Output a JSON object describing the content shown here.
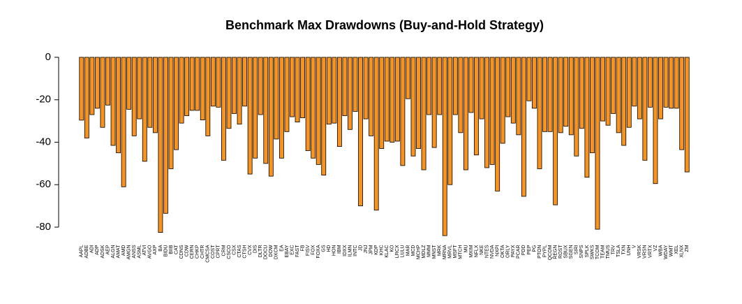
{
  "chart_data": {
    "type": "bar",
    "title": "Benchmark Max Drawdowns (Buy-and-Hold Strategy)",
    "color": "#f7931e",
    "categories": [
      "AAPL",
      "ADBE",
      "ADI",
      "ADP",
      "ADSK",
      "AEP",
      "ALGN",
      "AMAT",
      "AMD",
      "AMGN",
      "ANSS",
      "ASML",
      "ATVI",
      "AVGO",
      "AXP",
      "BA",
      "BIDU",
      "BIIB",
      "CAT",
      "CDNS",
      "CDW",
      "CERN",
      "CHKP",
      "CHTR",
      "CMCSA",
      "COST",
      "CPRT",
      "CRM",
      "CSCO",
      "CSX",
      "CTAS",
      "CTSH",
      "CVX",
      "DIS",
      "DLTR",
      "DOCU",
      "DOW",
      "DXCM",
      "EA",
      "EBAY",
      "EXC",
      "FAST",
      "FB",
      "FISV",
      "FOX",
      "FOXA",
      "GS",
      "HD",
      "HON",
      "IBM",
      "IDXX",
      "ILMN",
      "INTC",
      "JD",
      "JNJ",
      "JPM",
      "KDP",
      "KHC",
      "KLAC",
      "KO",
      "LRCX",
      "LULU",
      "MAR",
      "MCD",
      "MCHP",
      "MDLZ",
      "MMM",
      "MNST",
      "MRK",
      "MRNA",
      "MRVL",
      "MSFT",
      "MTCH",
      "MU",
      "MXIM",
      "NFLX",
      "NKE",
      "NTES",
      "NVDA",
      "NXPI",
      "OKTA",
      "ORLY",
      "PAYX",
      "PCAR",
      "PDD",
      "PEP",
      "PG",
      "PTON",
      "PYPL",
      "QCOM",
      "REGN",
      "ROST",
      "SBUX",
      "SGEN",
      "SIRI",
      "SNPS",
      "SPLK",
      "SWKS",
      "TCOM",
      "TEAM",
      "TMUS",
      "TRV",
      "TSLA",
      "TXN",
      "UNH",
      "V",
      "VRSK",
      "VRSN",
      "VRTX",
      "VZ",
      "WBA",
      "WDAY",
      "WMT",
      "XEL",
      "XLNX",
      "ZM"
    ],
    "values": [
      -29.6,
      -38,
      -27,
      -24,
      -33,
      -22.5,
      -41.5,
      -45,
      -61,
      -24.5,
      -37,
      -29,
      -49,
      -33,
      -35.5,
      -82.5,
      -73.5,
      -52.5,
      -43.5,
      -31,
      -27.5,
      -25,
      -25,
      -29.5,
      -37,
      -23,
      -23.5,
      -48.5,
      -33.5,
      -26.5,
      -31.5,
      -23,
      -55,
      -47.5,
      -27,
      -50,
      -56,
      -38.5,
      -47.5,
      -35,
      -28,
      -30.5,
      -28.5,
      -44,
      -47.5,
      -50.5,
      -55.5,
      -31.5,
      -31,
      -42,
      -27.5,
      -34,
      -25.5,
      -70,
      -29,
      -37,
      -72,
      -43,
      -39.5,
      -40,
      -39.5,
      -51,
      -19.5,
      -46.5,
      -43,
      -53,
      -27,
      -42.5,
      -27,
      -84,
      -60,
      -27,
      -35.5,
      -53,
      -26,
      -46,
      -29,
      -52,
      -50.5,
      -63,
      -40.5,
      -28,
      -31,
      -36.5,
      -65.5,
      -20.5,
      -24,
      -52.5,
      -35,
      -35,
      -69.5,
      -35.5,
      -32.5,
      -36.5,
      -46.5,
      -33.5,
      -56.5,
      -45,
      -81,
      -30,
      -32,
      -26.5,
      -35.5,
      -41.5,
      -33,
      -23,
      -29,
      -48.5,
      -23.5,
      -59.5,
      -29,
      -23.5,
      -24,
      -24,
      -43.5,
      -54
    ],
    "ylim": [
      -87.4,
      0
    ],
    "yticks": [
      -80,
      -60,
      -40,
      -20,
      0
    ]
  }
}
